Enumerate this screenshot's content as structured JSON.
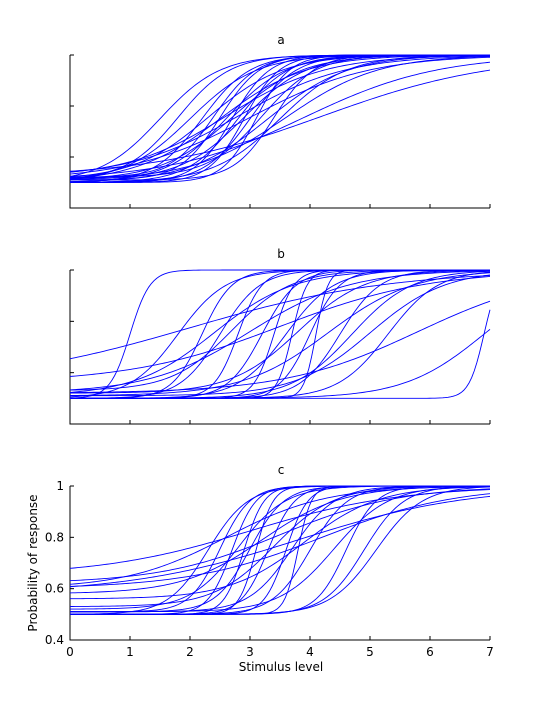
{
  "chart_data": [
    {
      "type": "line",
      "title": "a",
      "xlabel": "",
      "ylabel": "",
      "xlim": [
        0,
        7
      ],
      "ylim": [
        0.4,
        1
      ],
      "x_ticks": [
        0,
        1,
        2,
        3,
        4,
        5,
        6,
        7
      ],
      "y_ticks": [
        0.4,
        0.6,
        0.8,
        1
      ],
      "show_x_tick_labels": false,
      "show_y_tick_labels": false,
      "grid": false,
      "color": "#0000ff",
      "curve_family": "logistic psychometric functions, y = g + (1 - g) / (1 + exp(-s (x - t)))",
      "curves": [
        {
          "t": 1.5,
          "s": 2.0,
          "g": 0.5
        },
        {
          "t": 1.8,
          "s": 2.3,
          "g": 0.51
        },
        {
          "t": 2.0,
          "s": 1.8,
          "g": 0.5
        },
        {
          "t": 2.2,
          "s": 2.5,
          "g": 0.5
        },
        {
          "t": 2.3,
          "s": 1.6,
          "g": 0.51
        },
        {
          "t": 2.4,
          "s": 2.8,
          "g": 0.52
        },
        {
          "t": 2.5,
          "s": 1.4,
          "g": 0.5
        },
        {
          "t": 2.5,
          "s": 3.0,
          "g": 0.51
        },
        {
          "t": 2.6,
          "s": 2.0,
          "g": 0.5
        },
        {
          "t": 2.6,
          "s": 1.2,
          "g": 0.52
        },
        {
          "t": 2.7,
          "s": 3.2,
          "g": 0.5
        },
        {
          "t": 2.7,
          "s": 1.7,
          "g": 0.51
        },
        {
          "t": 2.8,
          "s": 2.4,
          "g": 0.5
        },
        {
          "t": 2.8,
          "s": 1.1,
          "g": 0.52
        },
        {
          "t": 2.9,
          "s": 3.4,
          "g": 0.5
        },
        {
          "t": 2.9,
          "s": 1.9,
          "g": 0.51
        },
        {
          "t": 3.0,
          "s": 2.6,
          "g": 0.5
        },
        {
          "t": 3.0,
          "s": 1.0,
          "g": 0.51
        },
        {
          "t": 3.1,
          "s": 3.6,
          "g": 0.5
        },
        {
          "t": 3.2,
          "s": 2.2,
          "g": 0.52
        },
        {
          "t": 3.3,
          "s": 1.5,
          "g": 0.5
        },
        {
          "t": 3.4,
          "s": 3.0,
          "g": 0.51
        },
        {
          "t": 3.5,
          "s": 1.8,
          "g": 0.5
        },
        {
          "t": 3.6,
          "s": 1.3,
          "g": 0.51
        },
        {
          "t": 3.9,
          "s": 0.9,
          "g": 0.51
        },
        {
          "t": 4.2,
          "s": 0.7,
          "g": 0.52
        }
      ]
    },
    {
      "type": "line",
      "title": "b",
      "xlabel": "",
      "ylabel": "",
      "xlim": [
        0,
        7
      ],
      "ylim": [
        0.4,
        1
      ],
      "x_ticks": [
        0,
        1,
        2,
        3,
        4,
        5,
        6,
        7
      ],
      "y_ticks": [
        0.4,
        0.6,
        0.8,
        1
      ],
      "show_x_tick_labels": false,
      "show_y_tick_labels": false,
      "grid": false,
      "color": "#0000ff",
      "curve_family": "logistic psychometric functions, y = g + (1 - g) / (1 + exp(-s (x - t)))",
      "curves": [
        {
          "t": 1.0,
          "s": 6.0,
          "g": 0.5
        },
        {
          "t": 1.8,
          "s": 2.5,
          "g": 0.5
        },
        {
          "t": 2.0,
          "s": 0.6,
          "g": 0.55
        },
        {
          "t": 2.2,
          "s": 4.0,
          "g": 0.5
        },
        {
          "t": 2.4,
          "s": 1.5,
          "g": 0.51
        },
        {
          "t": 2.5,
          "s": 3.0,
          "g": 0.5
        },
        {
          "t": 2.7,
          "s": 2.0,
          "g": 0.53
        },
        {
          "t": 2.8,
          "s": 5.0,
          "g": 0.5
        },
        {
          "t": 3.0,
          "s": 1.2,
          "g": 0.52
        },
        {
          "t": 3.2,
          "s": 3.5,
          "g": 0.5
        },
        {
          "t": 3.4,
          "s": 6.0,
          "g": 0.5
        },
        {
          "t": 3.5,
          "s": 0.8,
          "g": 0.56
        },
        {
          "t": 3.6,
          "s": 2.5,
          "g": 0.5
        },
        {
          "t": 3.7,
          "s": 8.0,
          "g": 0.5
        },
        {
          "t": 3.8,
          "s": 1.8,
          "g": 0.52
        },
        {
          "t": 4.0,
          "s": 4.0,
          "g": 0.5
        },
        {
          "t": 4.1,
          "s": 10.0,
          "g": 0.5
        },
        {
          "t": 4.3,
          "s": 1.4,
          "g": 0.51
        },
        {
          "t": 4.5,
          "s": 3.0,
          "g": 0.5
        },
        {
          "t": 4.7,
          "s": 2.0,
          "g": 0.5
        },
        {
          "t": 5.0,
          "s": 1.6,
          "g": 0.51
        },
        {
          "t": 5.3,
          "s": 2.4,
          "g": 0.5
        },
        {
          "t": 5.8,
          "s": 0.9,
          "g": 0.52
        },
        {
          "t": 6.9,
          "s": 1.5,
          "g": 0.5
        },
        {
          "t": 6.9,
          "s": 8.0,
          "g": 0.5
        }
      ]
    },
    {
      "type": "line",
      "title": "c",
      "xlabel": "Stimulus level",
      "ylabel": "Probability of response",
      "xlim": [
        0,
        7
      ],
      "ylim": [
        0.4,
        1
      ],
      "x_ticks": [
        0,
        1,
        2,
        3,
        4,
        5,
        6,
        7
      ],
      "x_tick_labels": [
        "0",
        "1",
        "2",
        "3",
        "4",
        "5",
        "6",
        "7"
      ],
      "y_ticks": [
        0.4,
        0.6,
        0.8,
        1
      ],
      "y_tick_labels": [
        "0.4",
        "0.6",
        "0.8",
        "1"
      ],
      "show_x_tick_labels": true,
      "show_y_tick_labels": true,
      "grid": false,
      "color": "#0000ff",
      "curve_family": "logistic psychometric functions, y = g + (1 - g) / (1 + exp(-s (x - t)))",
      "curves": [
        {
          "t": 2.3,
          "s": 3.0,
          "g": 0.5
        },
        {
          "t": 2.5,
          "s": 4.0,
          "g": 0.51
        },
        {
          "t": 2.6,
          "s": 1.2,
          "g": 0.6
        },
        {
          "t": 2.7,
          "s": 5.0,
          "g": 0.5
        },
        {
          "t": 2.8,
          "s": 2.5,
          "g": 0.52
        },
        {
          "t": 2.9,
          "s": 6.0,
          "g": 0.5
        },
        {
          "t": 3.0,
          "s": 0.8,
          "g": 0.65
        },
        {
          "t": 3.0,
          "s": 3.5,
          "g": 0.51
        },
        {
          "t": 3.1,
          "s": 7.0,
          "g": 0.5
        },
        {
          "t": 3.2,
          "s": 1.5,
          "g": 0.58
        },
        {
          "t": 3.3,
          "s": 4.5,
          "g": 0.5
        },
        {
          "t": 3.4,
          "s": 2.0,
          "g": 0.53
        },
        {
          "t": 3.5,
          "s": 1.0,
          "g": 0.62
        },
        {
          "t": 3.6,
          "s": 5.5,
          "g": 0.5
        },
        {
          "t": 3.7,
          "s": 2.8,
          "g": 0.51
        },
        {
          "t": 3.8,
          "s": 9.0,
          "g": 0.5
        },
        {
          "t": 3.9,
          "s": 1.6,
          "g": 0.56
        },
        {
          "t": 4.0,
          "s": 3.2,
          "g": 0.5
        },
        {
          "t": 4.2,
          "s": 0.9,
          "g": 0.6
        },
        {
          "t": 4.4,
          "s": 2.2,
          "g": 0.51
        },
        {
          "t": 4.6,
          "s": 4.0,
          "g": 0.5
        },
        {
          "t": 4.9,
          "s": 3.0,
          "g": 0.5
        },
        {
          "t": 5.1,
          "s": 2.6,
          "g": 0.5
        },
        {
          "t": 3.8,
          "s": 0.7,
          "g": 0.58
        }
      ]
    }
  ]
}
